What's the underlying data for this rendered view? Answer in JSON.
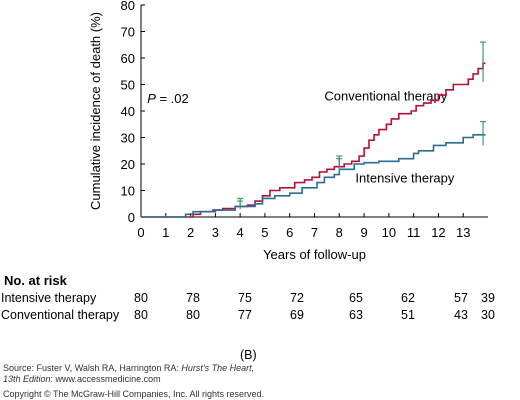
{
  "chart_data": {
    "type": "line",
    "step": true,
    "ylabel": "Cumulative incidence of death (%)",
    "xlabel": "Years of follow-up",
    "xlim": [
      0,
      14
    ],
    "ylim": [
      0,
      80
    ],
    "xticks": [
      "0",
      "1",
      "2",
      "3",
      "4",
      "5",
      "6",
      "7",
      "8",
      "9",
      "10",
      "11",
      "12",
      "13"
    ],
    "yticks": [
      "0",
      "10",
      "20",
      "30",
      "40",
      "50",
      "60",
      "70",
      "80"
    ],
    "annotation": "P = .02",
    "annotation_parts": [
      "P",
      " = .02"
    ],
    "series": [
      {
        "name": "Conventional therapy",
        "color": "#b5123a",
        "points": [
          [
            0,
            0
          ],
          [
            1.9,
            0
          ],
          [
            2.1,
            1
          ],
          [
            2.4,
            2
          ],
          [
            2.9,
            2.6
          ],
          [
            3.3,
            3.2
          ],
          [
            3.8,
            4
          ],
          [
            4.3,
            4.5
          ],
          [
            4.6,
            6
          ],
          [
            4.9,
            8
          ],
          [
            5.2,
            10
          ],
          [
            5.6,
            11
          ],
          [
            6.2,
            13
          ],
          [
            6.6,
            14
          ],
          [
            6.9,
            15
          ],
          [
            7.2,
            17
          ],
          [
            7.5,
            18
          ],
          [
            7.8,
            19
          ],
          [
            8.2,
            20
          ],
          [
            8.5,
            21
          ],
          [
            8.8,
            23
          ],
          [
            9.0,
            26
          ],
          [
            9.2,
            29
          ],
          [
            9.4,
            31
          ],
          [
            9.6,
            33
          ],
          [
            9.9,
            35
          ],
          [
            10.1,
            37
          ],
          [
            10.4,
            39
          ],
          [
            10.9,
            40
          ],
          [
            11.1,
            42
          ],
          [
            11.4,
            43
          ],
          [
            11.7,
            44
          ],
          [
            12.0,
            46
          ],
          [
            12.3,
            48
          ],
          [
            12.6,
            50
          ],
          [
            13.2,
            52
          ],
          [
            13.4,
            54
          ],
          [
            13.6,
            56
          ],
          [
            13.8,
            58
          ],
          [
            13.9,
            58
          ]
        ],
        "error_bars": [
          [
            4,
            4,
            7
          ],
          [
            8,
            19,
            23
          ],
          [
            13.8,
            51,
            66
          ]
        ]
      },
      {
        "name": "Intensive therapy",
        "color": "#2a6d94",
        "points": [
          [
            0,
            0
          ],
          [
            1.7,
            0
          ],
          [
            1.8,
            1
          ],
          [
            2.1,
            2
          ],
          [
            3.0,
            2.6
          ],
          [
            3.8,
            4
          ],
          [
            4.6,
            5
          ],
          [
            4.9,
            7
          ],
          [
            5.4,
            8
          ],
          [
            6.0,
            9
          ],
          [
            6.5,
            11
          ],
          [
            7.1,
            13
          ],
          [
            7.4,
            15
          ],
          [
            7.8,
            16
          ],
          [
            8.0,
            18
          ],
          [
            8.6,
            20
          ],
          [
            9.0,
            20.5
          ],
          [
            9.6,
            21
          ],
          [
            10.4,
            22
          ],
          [
            11.0,
            24
          ],
          [
            11.2,
            25
          ],
          [
            11.8,
            27
          ],
          [
            12.3,
            28
          ],
          [
            13.0,
            30
          ],
          [
            13.4,
            31
          ],
          [
            13.9,
            31
          ]
        ],
        "error_bars": [
          [
            4,
            3,
            6
          ],
          [
            8,
            17,
            22
          ],
          [
            13.8,
            27,
            36
          ]
        ]
      }
    ],
    "series_labels": [
      "Conventional therapy",
      "Intensive therapy"
    ]
  },
  "risk_table": {
    "title": "No. at risk",
    "rows": [
      {
        "label": "Intensive therapy",
        "values": [
          "80",
          "78",
          "75",
          "72",
          "65",
          "62",
          "57",
          "39"
        ]
      },
      {
        "label": "Conventional therapy",
        "values": [
          "80",
          "80",
          "77",
          "69",
          "63",
          "51",
          "43",
          "30"
        ]
      }
    ]
  },
  "panel_label": "(B)",
  "source": {
    "line1_prefix": "Source: Fuster V, Walsh RA, Harrington RA: ",
    "line1_title": "Hurst's The Heart,",
    "line2_title": "13th Edition",
    "line2_suffix": ": www.accessmedicine.com",
    "line3": "Copyright © The McGraw-Hill Companies, Inc. All rights reserved."
  }
}
